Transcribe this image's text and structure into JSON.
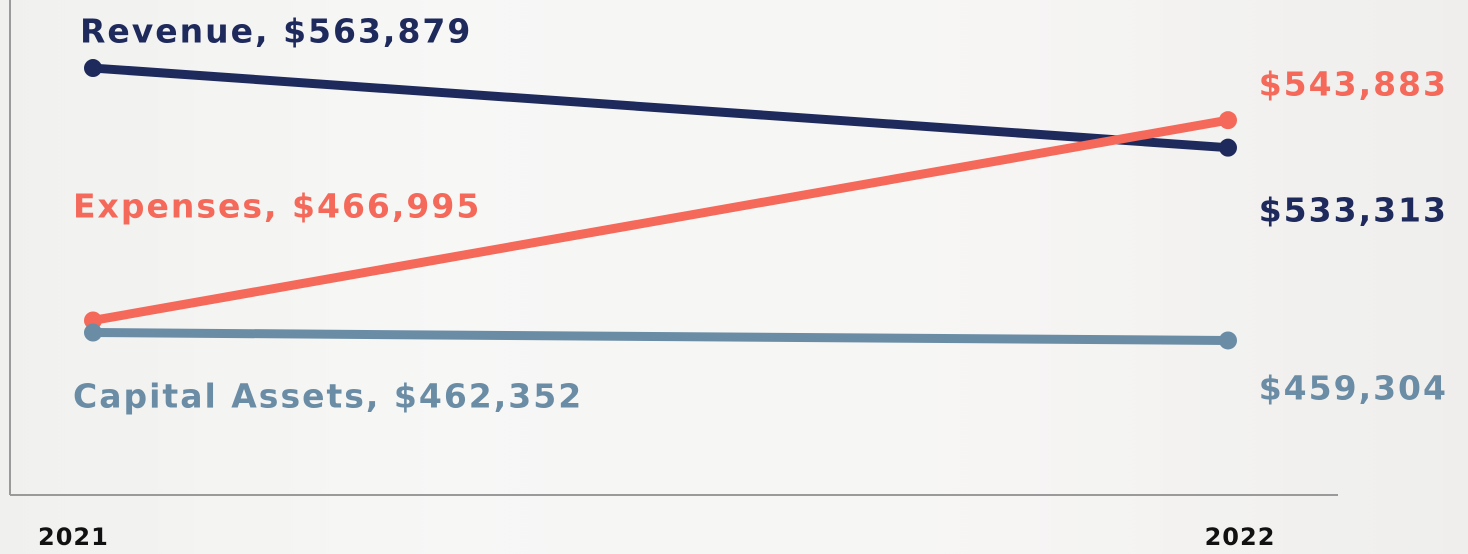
{
  "chart_data": {
    "type": "line",
    "categories": [
      "2021",
      "2022"
    ],
    "ylim": [
      400000,
      590000
    ],
    "series": [
      {
        "color": "#1f2a5c",
        "values": [
          563879,
          533313
        ],
        "value_labels": [
          "Revenue, $563,879",
          "$533,313"
        ]
      },
      {
        "color": "#f4695a",
        "values": [
          466995,
          543883
        ],
        "value_labels": [
          "Expenses, $466,995",
          "$543,883"
        ]
      },
      {
        "color": "#6a8ca5",
        "values": [
          462352,
          459304
        ],
        "value_labels": [
          "Capital Assets, $462,352",
          "$459,304"
        ]
      }
    ]
  }
}
